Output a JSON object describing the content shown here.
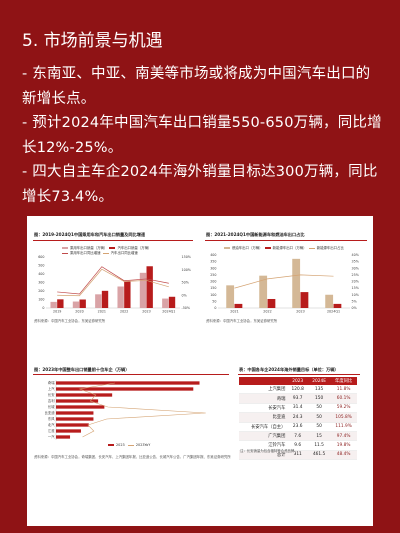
{
  "heading": "5. 市场前景与机遇",
  "bullets": [
    "- 东南亚、中亚、南美等市场或将成为中国汽车出口的新增长点。",
    "- 预计2024年中国汽车出口销量550-650万辆，同比增长12%-25%。",
    "- 四大自主车企2024年海外销量目标达300万辆，同比增长73.4%。"
  ],
  "figures": {
    "fig1": {
      "caption": "图：2019-2024Q1中国乘用车和汽车出口销量及同比增速",
      "legend": [
        "乘用车出口销量（万辆）",
        "汽车出口销量（万辆）",
        "乘用车出口同比增速",
        "汽车出口同比增速"
      ],
      "source": "资料来源：中国汽车工业协会，东吴证券研究所"
    },
    "fig2": {
      "caption": "图：2021-2024Q1中国新能源车和燃油车出口占比",
      "legend": [
        "燃油车出口（万辆）",
        "新能源车出口（万辆）",
        "新能源车出口占比"
      ],
      "source": "资料来源：中国汽车工业协会，东吴证券研究所"
    },
    "fig3": {
      "caption": "图：2023年中国整车出口销量前十位车企（万辆）",
      "legend": [
        "2023",
        "2023YoY"
      ],
      "source": ""
    },
    "table": {
      "caption": "表：中国各车企2024年海外销量目标（单位：万辆）",
      "headers": [
        "",
        "2023",
        "2024E",
        "年度同比"
      ],
      "rows": [
        [
          "上汽集团",
          "120.8",
          "135",
          "11.8%"
        ],
        [
          "奇瑞",
          "93.7",
          "150",
          "60.1%"
        ],
        [
          "长安汽车",
          "31.4",
          "50",
          "59.2%"
        ],
        [
          "比亚迪",
          "24.3",
          "50",
          "105.8%"
        ],
        [
          "长安汽车（自主）",
          "23.6",
          "50",
          "111.9%"
        ],
        [
          "广汽集团",
          "7.6",
          "15",
          "97.4%"
        ],
        [
          "江铃汽车",
          "9.6",
          "11.5",
          "19.8%"
        ],
        [
          "总计",
          "311",
          "461.5",
          "48.4%"
        ]
      ],
      "source": "注：长安销量为包含福特等合资品牌"
    },
    "footer_source": "资料来源：中国汽车工业协会，奇瑞集团、长安汽车、上汽集团年报、比亚迪公告、长城汽车公告，广汽集团年报、东吴证券研究所"
  },
  "chart_data": [
    {
      "type": "bar",
      "categories": [
        "2019",
        "2020",
        "2021",
        "2022",
        "2023",
        "2024Q1"
      ],
      "series": [
        {
          "name": "乘用车出口销量（万辆）",
          "values": [
            72,
            76,
            161,
            253,
            414,
            111
          ]
        },
        {
          "name": "汽车出口销量（万辆）",
          "values": [
            102,
            100,
            202,
            311,
            491,
            132
          ]
        },
        {
          "name": "乘用车出口同比增速",
          "values": [
            13,
            5,
            112,
            57,
            64,
            47
          ]
        },
        {
          "name": "汽车出口同比增速",
          "values": [
            0,
            -2,
            102,
            54,
            58,
            33
          ]
        }
      ]
    },
    {
      "type": "bar",
      "categories": [
        "2021",
        "2022",
        "2023",
        "2024Q1"
      ],
      "series": [
        {
          "name": "燃油车出口（万辆）",
          "values": [
            171,
            244,
            371,
            100
          ]
        },
        {
          "name": "新能源车出口（万辆）",
          "values": [
            31,
            68,
            120,
            31
          ]
        },
        {
          "name": "新能源车出口占比",
          "values": [
            15,
            22,
            25,
            24
          ]
        }
      ]
    },
    {
      "type": "bar",
      "categories": [
        "奇瑞",
        "上汽",
        "长安",
        "吉利",
        "长城",
        "比亚迪",
        "东风",
        "北汽",
        "江淮",
        "一汽"
      ],
      "series": [
        {
          "name": "2023",
          "values": [
            92,
            88,
            36,
            27,
            31,
            24,
            24,
            21,
            16,
            9
          ]
        },
        {
          "name": "2023YoY",
          "values": [
            101,
            11,
            52,
            38,
            83,
            334,
            80,
            32,
            47,
            18
          ]
        }
      ]
    }
  ]
}
